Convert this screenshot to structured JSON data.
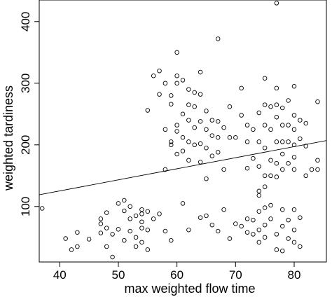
{
  "chart_data": {
    "type": "scatter",
    "title": "",
    "xlabel": "max weighted flow time",
    "ylabel": "weighted tardiness",
    "xlim": [
      36.5,
      85.5
    ],
    "ylim": [
      10,
      435
    ],
    "x_ticks": [
      40,
      50,
      60,
      70,
      80
    ],
    "y_ticks": [
      100,
      200,
      300,
      400
    ],
    "grid": false,
    "legend": "none",
    "regression_line": {
      "x": [
        36.5,
        85.5
      ],
      "y": [
        119,
        207
      ]
    },
    "points": [
      [
        37,
        97
      ],
      [
        41,
        48
      ],
      [
        42,
        30
      ],
      [
        43,
        35
      ],
      [
        43,
        58
      ],
      [
        45,
        47
      ],
      [
        47,
        57
      ],
      [
        47,
        72
      ],
      [
        48,
        65
      ],
      [
        48,
        35
      ],
      [
        49,
        18
      ],
      [
        48,
        90
      ],
      [
        47,
        80
      ],
      [
        50,
        105
      ],
      [
        50,
        63
      ],
      [
        51,
        93
      ],
      [
        51,
        110
      ],
      [
        52,
        60
      ],
      [
        52,
        80
      ],
      [
        52,
        100
      ],
      [
        53,
        35
      ],
      [
        54,
        42
      ],
      [
        54,
        88
      ],
      [
        54,
        65
      ],
      [
        54,
        75
      ],
      [
        55,
        92
      ],
      [
        55,
        62
      ],
      [
        54,
        95
      ],
      [
        55,
        30
      ],
      [
        53,
        50
      ],
      [
        51,
        45
      ],
      [
        49,
        55
      ],
      [
        53,
        85
      ],
      [
        56,
        80
      ],
      [
        57,
        88
      ],
      [
        58,
        60
      ],
      [
        59,
        45
      ],
      [
        61,
        105
      ],
      [
        62,
        62
      ],
      [
        64,
        82
      ],
      [
        55,
        256
      ],
      [
        56,
        312
      ],
      [
        57,
        320
      ],
      [
        57,
        282
      ],
      [
        58,
        300
      ],
      [
        58,
        225
      ],
      [
        58,
        160
      ],
      [
        59,
        280
      ],
      [
        59,
        266
      ],
      [
        59,
        200
      ],
      [
        59,
        205
      ],
      [
        60,
        350
      ],
      [
        60,
        312
      ],
      [
        60,
        300
      ],
      [
        60,
        232
      ],
      [
        60,
        222
      ],
      [
        60,
        185
      ],
      [
        61,
        305
      ],
      [
        61,
        250
      ],
      [
        61,
        212
      ],
      [
        61,
        190
      ],
      [
        62,
        290
      ],
      [
        62,
        265
      ],
      [
        62,
        240
      ],
      [
        62,
        175
      ],
      [
        62,
        205
      ],
      [
        63,
        285
      ],
      [
        63,
        262
      ],
      [
        63,
        228
      ],
      [
        63,
        200
      ],
      [
        64,
        318
      ],
      [
        64,
        282
      ],
      [
        64,
        238
      ],
      [
        64,
        202
      ],
      [
        64,
        172
      ],
      [
        65,
        255
      ],
      [
        65,
        225
      ],
      [
        65,
        195
      ],
      [
        65,
        145
      ],
      [
        66,
        240
      ],
      [
        66,
        215
      ],
      [
        66,
        182
      ],
      [
        67,
        372
      ],
      [
        67,
        238
      ],
      [
        67,
        212
      ],
      [
        67,
        188
      ],
      [
        68,
        228
      ],
      [
        68,
        160
      ],
      [
        69,
        262
      ],
      [
        69,
        212
      ],
      [
        70,
        212
      ],
      [
        71,
        292
      ],
      [
        71,
        248
      ],
      [
        72,
        232
      ],
      [
        72,
        205
      ],
      [
        72,
        162
      ],
      [
        73,
        225
      ],
      [
        73,
        178
      ],
      [
        74,
        252
      ],
      [
        74,
        205
      ],
      [
        74,
        165
      ],
      [
        75,
        308
      ],
      [
        75,
        265
      ],
      [
        75,
        232
      ],
      [
        75,
        195
      ],
      [
        75,
        150
      ],
      [
        76,
        262
      ],
      [
        76,
        225
      ],
      [
        76,
        175
      ],
      [
        76,
        150
      ],
      [
        77,
        430
      ],
      [
        77,
        292
      ],
      [
        77,
        265
      ],
      [
        77,
        245
      ],
      [
        77,
        205
      ],
      [
        77,
        170
      ],
      [
        77,
        148
      ],
      [
        78,
        260
      ],
      [
        78,
        232
      ],
      [
        78,
        205
      ],
      [
        78,
        185
      ],
      [
        78,
        160
      ],
      [
        79,
        272
      ],
      [
        79,
        232
      ],
      [
        79,
        205
      ],
      [
        79,
        170
      ],
      [
        80,
        295
      ],
      [
        80,
        248
      ],
      [
        80,
        225
      ],
      [
        80,
        200
      ],
      [
        80,
        180
      ],
      [
        80,
        160
      ],
      [
        81,
        240
      ],
      [
        81,
        210
      ],
      [
        82,
        235
      ],
      [
        82,
        198
      ],
      [
        83,
        160
      ],
      [
        84,
        270
      ],
      [
        84,
        175
      ],
      [
        84,
        160
      ],
      [
        82,
        150
      ],
      [
        65,
        85
      ],
      [
        66,
        70
      ],
      [
        67,
        60
      ],
      [
        68,
        95
      ],
      [
        69,
        48
      ],
      [
        70,
        72
      ],
      [
        71,
        68
      ],
      [
        72,
        80
      ],
      [
        73,
        55
      ],
      [
        73,
        78
      ],
      [
        74,
        42
      ],
      [
        74,
        62
      ],
      [
        74,
        92
      ],
      [
        75,
        98
      ],
      [
        75,
        70
      ],
      [
        75,
        50
      ],
      [
        76,
        80
      ],
      [
        77,
        55
      ],
      [
        77,
        30
      ],
      [
        78,
        28
      ],
      [
        78,
        95
      ],
      [
        78,
        68
      ],
      [
        79,
        48
      ],
      [
        79,
        78
      ],
      [
        80,
        62
      ],
      [
        80,
        42
      ],
      [
        80,
        95
      ],
      [
        81,
        35
      ],
      [
        81,
        82
      ],
      [
        74,
        118
      ],
      [
        75,
        132
      ],
      [
        76,
        102
      ],
      [
        74,
        125
      ],
      [
        72,
        58
      ]
    ]
  }
}
